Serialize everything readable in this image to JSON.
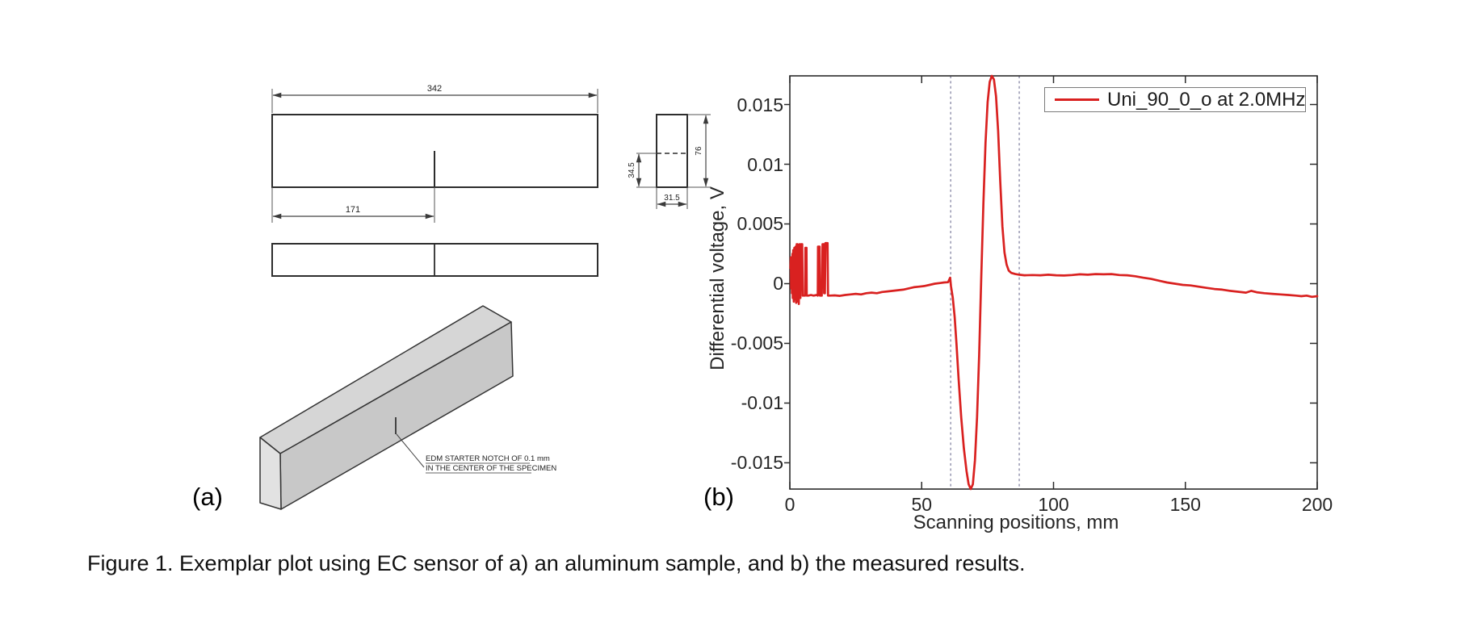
{
  "figure": {
    "panel_a_label": "(a)",
    "panel_b_label": "(b)",
    "caption": "Figure 1. Exemplar plot using EC sensor of a) an aluminum sample, and b) the measured results."
  },
  "drawing": {
    "dim_length": "342",
    "dim_notch_position": "171",
    "dim_half_height": "34.5",
    "dim_height": "76",
    "dim_width": "31.5",
    "notch_note_line1": "EDM STARTER NOTCH OF 0.1 mm",
    "notch_note_line2": "IN THE CENTER OF THE SPECIMEN"
  },
  "chart_data": {
    "type": "line",
    "title": "",
    "xlabel": "Scanning positions, mm",
    "ylabel": "Differential voltage, V",
    "xlim": [
      0,
      200
    ],
    "ylim": [
      -0.0172,
      0.0174
    ],
    "grid": false,
    "xtick_values": [
      0,
      50,
      100,
      150,
      200
    ],
    "xtick_labels": [
      "0",
      "50",
      "100",
      "150",
      "200"
    ],
    "ytick_values": [
      0.015,
      0.01,
      0.005,
      0,
      -0.005,
      -0.01,
      -0.015
    ],
    "ytick_labels": [
      "0.015",
      "0.01",
      "0.005",
      "0",
      "-0.005",
      "-0.01",
      "-0.015"
    ],
    "legend": {
      "label": "Uni_90_0_o at 2.0MHz",
      "position": "top-right"
    },
    "vlines": {
      "x": [
        61,
        87
      ],
      "style": "dashed",
      "color": "#8585a3"
    },
    "colors": {
      "curve": "#d92120",
      "axis": "#2b2b2b"
    },
    "series": [
      {
        "name": "Uni_90_0_o at 2.0MHz",
        "color": "#d92120",
        "points": [
          [
            0.2,
            0.0013
          ],
          [
            0.4,
            0.0022
          ],
          [
            0.5,
            -0.0004
          ],
          [
            0.7,
            0.0018
          ],
          [
            0.8,
            -0.0008
          ],
          [
            1.0,
            0.0025
          ],
          [
            1.1,
            -0.0012
          ],
          [
            1.3,
            0.0028
          ],
          [
            1.5,
            -0.0015
          ],
          [
            1.7,
            0.003
          ],
          [
            1.9,
            0.0008
          ],
          [
            2.0,
            -0.0013
          ],
          [
            2.2,
            0.0031
          ],
          [
            2.4,
            -0.0016
          ],
          [
            2.6,
            0.0033
          ],
          [
            2.9,
            0.0033
          ],
          [
            3.0,
            -0.0015
          ],
          [
            3.2,
            0.002
          ],
          [
            3.4,
            -0.0017
          ],
          [
            3.7,
            0.0033
          ],
          [
            3.8,
            0.0033
          ],
          [
            4.0,
            -0.0012
          ],
          [
            4.3,
            0.0033
          ],
          [
            4.7,
            0.0033
          ],
          [
            4.9,
            -0.001
          ],
          [
            5.3,
            -0.001
          ],
          [
            5.8,
            -0.001
          ],
          [
            5.9,
            0.003
          ],
          [
            6.3,
            0.003
          ],
          [
            6.4,
            -0.001
          ],
          [
            7.0,
            -0.001
          ],
          [
            8.0,
            -0.00095
          ],
          [
            9.0,
            -0.001
          ],
          [
            10.2,
            -0.00095
          ],
          [
            10.6,
            -0.001
          ],
          [
            10.7,
            0.0031
          ],
          [
            11.3,
            0.0031
          ],
          [
            11.4,
            -0.001
          ],
          [
            12.1,
            -0.001
          ],
          [
            12.4,
            0.0033
          ],
          [
            12.9,
            0.0033
          ],
          [
            13.0,
            -0.0008
          ],
          [
            13.3,
            -0.0008
          ],
          [
            13.5,
            0.0034
          ],
          [
            14.3,
            0.0034
          ],
          [
            14.5,
            -0.001
          ],
          [
            15,
            -0.001
          ],
          [
            17,
            -0.00098
          ],
          [
            19,
            -0.00102
          ],
          [
            21,
            -0.00095
          ],
          [
            23,
            -0.0009
          ],
          [
            25,
            -0.00085
          ],
          [
            27,
            -0.0009
          ],
          [
            29,
            -0.0008
          ],
          [
            31,
            -0.00075
          ],
          [
            33,
            -0.0008
          ],
          [
            35,
            -0.0007
          ],
          [
            37,
            -0.00065
          ],
          [
            39,
            -0.0006
          ],
          [
            41,
            -0.00055
          ],
          [
            43,
            -0.0005
          ],
          [
            45,
            -0.0004
          ],
          [
            47,
            -0.0003
          ],
          [
            49,
            -0.00025
          ],
          [
            51,
            -0.0002
          ],
          [
            53,
            -0.0001
          ],
          [
            55,
            0.0
          ],
          [
            57,
            5e-05
          ],
          [
            58.5,
            0.0001
          ],
          [
            60,
            0.00012
          ],
          [
            60.8,
            0.0005
          ],
          [
            61.1,
            -0.0002
          ],
          [
            61.8,
            -0.0012
          ],
          [
            62.5,
            -0.0028
          ],
          [
            63.2,
            -0.005
          ],
          [
            64,
            -0.008
          ],
          [
            65,
            -0.0112
          ],
          [
            66,
            -0.0138
          ],
          [
            67,
            -0.0157
          ],
          [
            67.8,
            -0.0168
          ],
          [
            68.6,
            -0.0172
          ],
          [
            69.4,
            -0.0168
          ],
          [
            70.2,
            -0.0148
          ],
          [
            71,
            -0.0112
          ],
          [
            71.8,
            -0.006
          ],
          [
            72.6,
            0.0005
          ],
          [
            73.4,
            0.0068
          ],
          [
            74.2,
            0.0118
          ],
          [
            75,
            0.0152
          ],
          [
            75.8,
            0.0169
          ],
          [
            76.6,
            0.0174
          ],
          [
            77.4,
            0.0171
          ],
          [
            78.2,
            0.0157
          ],
          [
            79,
            0.0128
          ],
          [
            79.8,
            0.0086
          ],
          [
            80.6,
            0.0048
          ],
          [
            81.4,
            0.0026
          ],
          [
            82.2,
            0.0016
          ],
          [
            83,
            0.0011
          ],
          [
            84,
            0.0009
          ],
          [
            85.5,
            0.0008
          ],
          [
            87,
            0.00075
          ],
          [
            89,
            0.0007
          ],
          [
            92,
            0.00072
          ],
          [
            95,
            0.0007
          ],
          [
            98,
            0.00075
          ],
          [
            101,
            0.0007
          ],
          [
            104,
            0.00068
          ],
          [
            107,
            0.00072
          ],
          [
            110,
            0.00078
          ],
          [
            113,
            0.00075
          ],
          [
            116,
            0.0008
          ],
          [
            119,
            0.00078
          ],
          [
            122,
            0.0008
          ],
          [
            125,
            0.00072
          ],
          [
            128,
            0.0007
          ],
          [
            131,
            0.00062
          ],
          [
            134,
            0.0005
          ],
          [
            137,
            0.0004
          ],
          [
            140,
            0.00025
          ],
          [
            143,
            0.0001
          ],
          [
            146,
            0.0
          ],
          [
            149,
            -0.0001
          ],
          [
            152,
            -0.00015
          ],
          [
            155,
            -0.00025
          ],
          [
            158,
            -0.00035
          ],
          [
            161,
            -0.00045
          ],
          [
            164,
            -0.0005
          ],
          [
            167,
            -0.0006
          ],
          [
            170,
            -0.00068
          ],
          [
            173,
            -0.00075
          ],
          [
            175,
            -0.0006
          ],
          [
            177,
            -0.00072
          ],
          [
            180,
            -0.0008
          ],
          [
            183,
            -0.00085
          ],
          [
            186,
            -0.0009
          ],
          [
            189,
            -0.00095
          ],
          [
            192,
            -0.001
          ],
          [
            194,
            -0.00105
          ],
          [
            196,
            -0.001
          ],
          [
            198,
            -0.0011
          ],
          [
            200,
            -0.00105
          ]
        ]
      }
    ]
  }
}
